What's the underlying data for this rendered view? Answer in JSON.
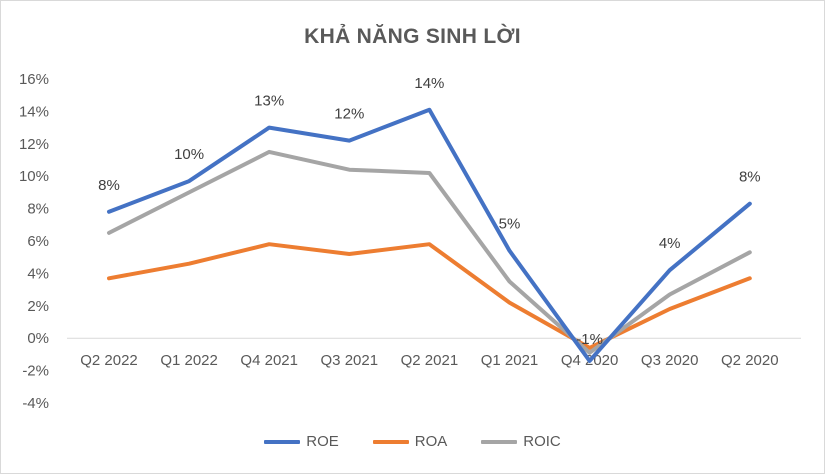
{
  "chart_data": {
    "type": "line",
    "title": "KHẢ NĂNG SINH LỜI",
    "categories": [
      "Q2 2022",
      "Q1 2022",
      "Q4 2021",
      "Q3 2021",
      "Q2 2021",
      "Q1 2021",
      "Q4 2020",
      "Q3 2020",
      "Q2 2020"
    ],
    "series": [
      {
        "name": "ROE",
        "color": "#4472c4",
        "values": [
          7.8,
          9.7,
          13.0,
          12.2,
          14.1,
          5.4,
          -1.4,
          4.2,
          8.3
        ],
        "data_labels": [
          "8%",
          "10%",
          "13%",
          "12%",
          "14%",
          "5%",
          "-1%",
          "4%",
          "8%"
        ]
      },
      {
        "name": "ROA",
        "color": "#ed7d31",
        "values": [
          3.7,
          4.6,
          5.8,
          5.2,
          5.8,
          2.2,
          -0.6,
          1.8,
          3.7
        ]
      },
      {
        "name": "ROIC",
        "color": "#a5a5a5",
        "values": [
          6.5,
          9.0,
          11.5,
          10.4,
          10.2,
          3.5,
          -0.9,
          2.7,
          5.3
        ]
      }
    ],
    "yticks": [
      "16%",
      "14%",
      "12%",
      "10%",
      "8%",
      "6%",
      "4%",
      "2%",
      "0%",
      "-2%",
      "-4%"
    ],
    "ylim": [
      -4,
      16
    ],
    "grid": false,
    "legend": "bottom"
  }
}
